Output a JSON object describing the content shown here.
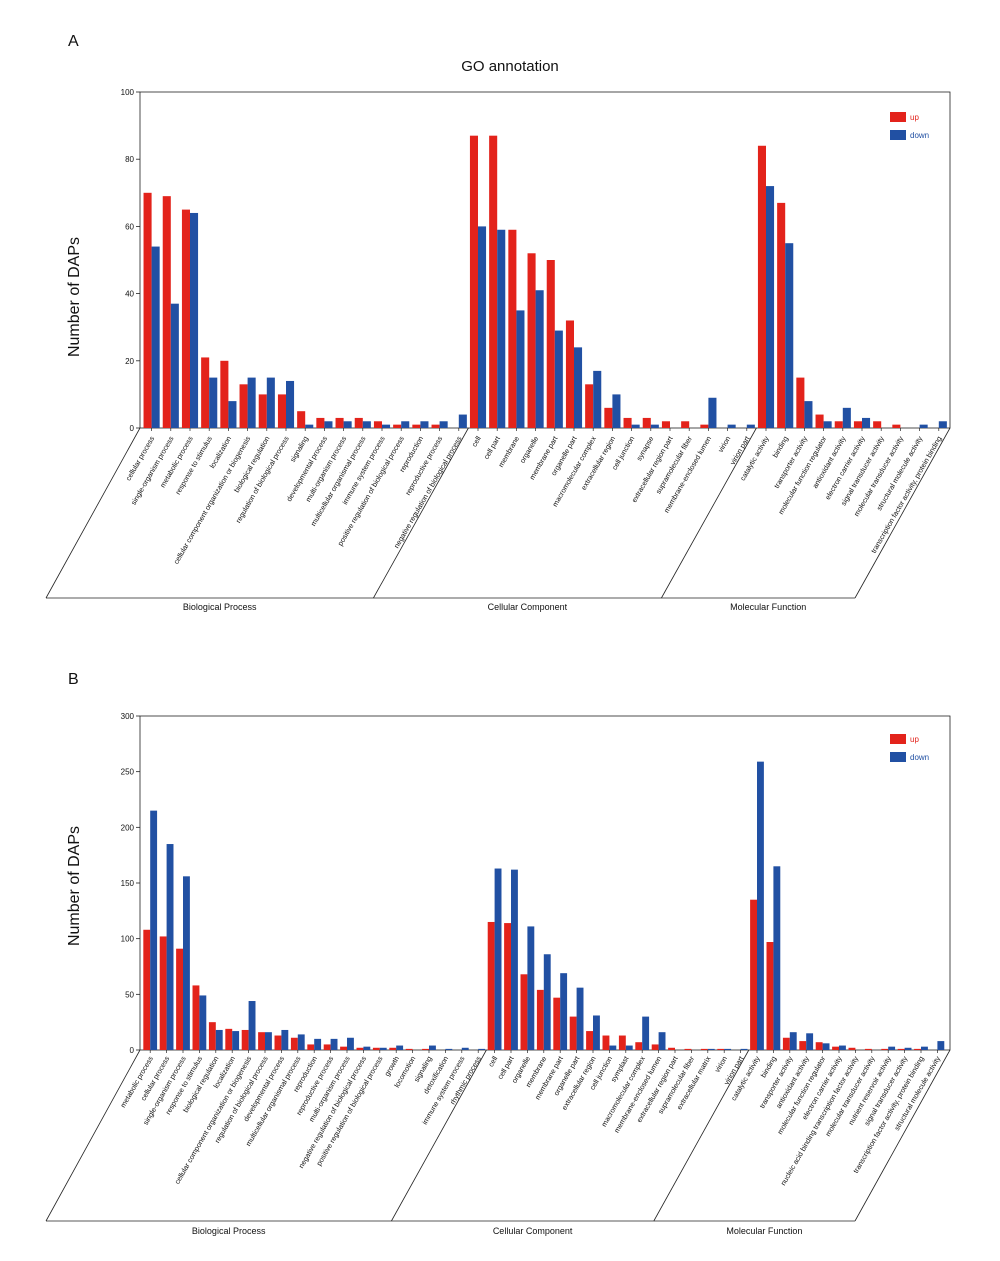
{
  "colors": {
    "up": "#e3231b",
    "down": "#2150a3"
  },
  "chart_data": [
    {
      "type": "bar",
      "panel_label": "A",
      "title": "GO annotation",
      "ylabel": "Number of DAPs",
      "xlabel": "",
      "ylim": [
        0,
        100
      ],
      "yticks": [
        0,
        20,
        40,
        60,
        80,
        100
      ],
      "legend_position": "top-right",
      "group_labels": [
        "Biological Process",
        "Cellular Component",
        "Molecular Function"
      ],
      "categories": [
        "cellular process",
        "single-organism process",
        "metabolic process",
        "response to stimulus",
        "localization",
        "cellular component organization or biogenesis",
        "biological regulation",
        "regulation of biological process",
        "signaling",
        "developmental process",
        "multi-organism process",
        "multicellular organismal process",
        "immune system process",
        "positive regulation of biological process",
        "reproduction",
        "reproductive process",
        "negative regulation of biological process",
        "cell",
        "cell part",
        "membrane",
        "organelle",
        "membrane part",
        "organelle part",
        "macromolecular complex",
        "extracellular region",
        "cell junction",
        "synapse",
        "extracellular region part",
        "supramolecular fiber",
        "membrane-enclosed lumen",
        "virion",
        "virion part",
        "catalytic activity",
        "binding",
        "transporter activity",
        "molecular function regulator",
        "antioxidant activity",
        "electron carrier activity",
        "signal transducer activity",
        "molecular transducer activity",
        "structural molecule activity",
        "transcription factor activity, protein binding"
      ],
      "groups": [
        17,
        15,
        10
      ],
      "series": [
        {
          "name": "up",
          "values": [
            70,
            69,
            65,
            21,
            20,
            13,
            10,
            10,
            5,
            3,
            3,
            3,
            2,
            1,
            1,
            1,
            0,
            87,
            87,
            59,
            52,
            50,
            32,
            13,
            6,
            3,
            3,
            2,
            2,
            1,
            0,
            0,
            84,
            67,
            15,
            4,
            2,
            2,
            2,
            1,
            0,
            0
          ]
        },
        {
          "name": "down",
          "values": [
            54,
            37,
            64,
            15,
            8,
            15,
            15,
            14,
            1,
            2,
            2,
            2,
            1,
            2,
            2,
            2,
            4,
            60,
            59,
            35,
            41,
            29,
            24,
            17,
            10,
            1,
            1,
            0,
            0,
            9,
            1,
            1,
            72,
            55,
            8,
            2,
            6,
            3,
            0,
            0,
            1,
            2
          ]
        }
      ]
    },
    {
      "type": "bar",
      "panel_label": "B",
      "title": "",
      "ylabel": "Number of DAPs",
      "xlabel": "",
      "ylim": [
        0,
        300
      ],
      "yticks": [
        0,
        50,
        100,
        150,
        200,
        250,
        300
      ],
      "legend_position": "top-right",
      "group_labels": [
        "Biological Process",
        "Cellular Component",
        "Molecular Function"
      ],
      "categories": [
        "metabolic process",
        "cellular process",
        "single-organism process",
        "response to stimulus",
        "biological regulation",
        "localization",
        "cellular component organization or biogenesis",
        "regulation of biological process",
        "developmental process",
        "multicellular organismal process",
        "reproduction",
        "reproductive process",
        "multi-organism process",
        "negative regulation of biological process",
        "positive regulation of biological process",
        "growth",
        "locomotion",
        "signaling",
        "detoxification",
        "immune system process",
        "rhythmic process",
        "cell",
        "cell part",
        "organelle",
        "membrane",
        "membrane part",
        "organelle part",
        "extracellular region",
        "cell junction",
        "symplast",
        "macromolecular complex",
        "membrane-enclosed lumen",
        "extracellular region part",
        "supramolecular fiber",
        "extracellular matrix",
        "virion",
        "virion part",
        "catalytic activity",
        "binding",
        "transporter activity",
        "antioxidant activity",
        "molecular function regulator",
        "electron carrier activity",
        "nucleic acid binding transcription factor activity",
        "molecular transducer activity",
        "nutrient reservoir activity",
        "signal transducer activity",
        "transcription factor activity, protein binding",
        "structural molecule activity"
      ],
      "groups": [
        21,
        16,
        12
      ],
      "series": [
        {
          "name": "up",
          "values": [
            108,
            102,
            91,
            58,
            25,
            19,
            18,
            16,
            13,
            11,
            5,
            5,
            3,
            2,
            2,
            2,
            1,
            1,
            0,
            0,
            0,
            115,
            114,
            68,
            54,
            47,
            30,
            17,
            13,
            13,
            7,
            5,
            2,
            1,
            1,
            1,
            0,
            135,
            97,
            11,
            8,
            7,
            3,
            2,
            1,
            1,
            1,
            1,
            0
          ]
        },
        {
          "name": "down",
          "values": [
            215,
            185,
            156,
            49,
            18,
            17,
            44,
            16,
            18,
            14,
            10,
            10,
            11,
            3,
            2,
            4,
            0,
            4,
            1,
            2,
            1,
            163,
            162,
            111,
            86,
            69,
            56,
            31,
            4,
            4,
            30,
            16,
            0,
            0,
            1,
            1,
            1,
            259,
            165,
            16,
            15,
            6,
            4,
            0,
            0,
            3,
            2,
            3,
            8
          ]
        }
      ]
    }
  ]
}
